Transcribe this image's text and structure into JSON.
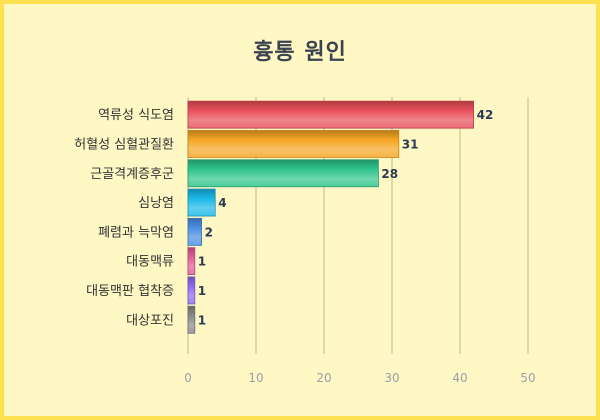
{
  "chart_data": {
    "type": "bar",
    "orientation": "horizontal",
    "title": "흉통 원인",
    "categories": [
      "역류성 식도염",
      "허혈성 심혈관질환",
      "근골격계증후군",
      "심낭염",
      "폐렴과 늑막염",
      "대동맥류",
      "대동맥판 협착증",
      "대상포진"
    ],
    "values": [
      42,
      31,
      28,
      4,
      2,
      1,
      1,
      1
    ],
    "colors": [
      "#e8505b",
      "#f5a623",
      "#2ec48a",
      "#1ab8e8",
      "#4a90e2",
      "#e05c9a",
      "#8e6cf0",
      "#8a8a8a"
    ],
    "xlim": [
      0,
      50
    ],
    "xticks": [
      0,
      10,
      20,
      30,
      40,
      50
    ],
    "grid": true
  }
}
